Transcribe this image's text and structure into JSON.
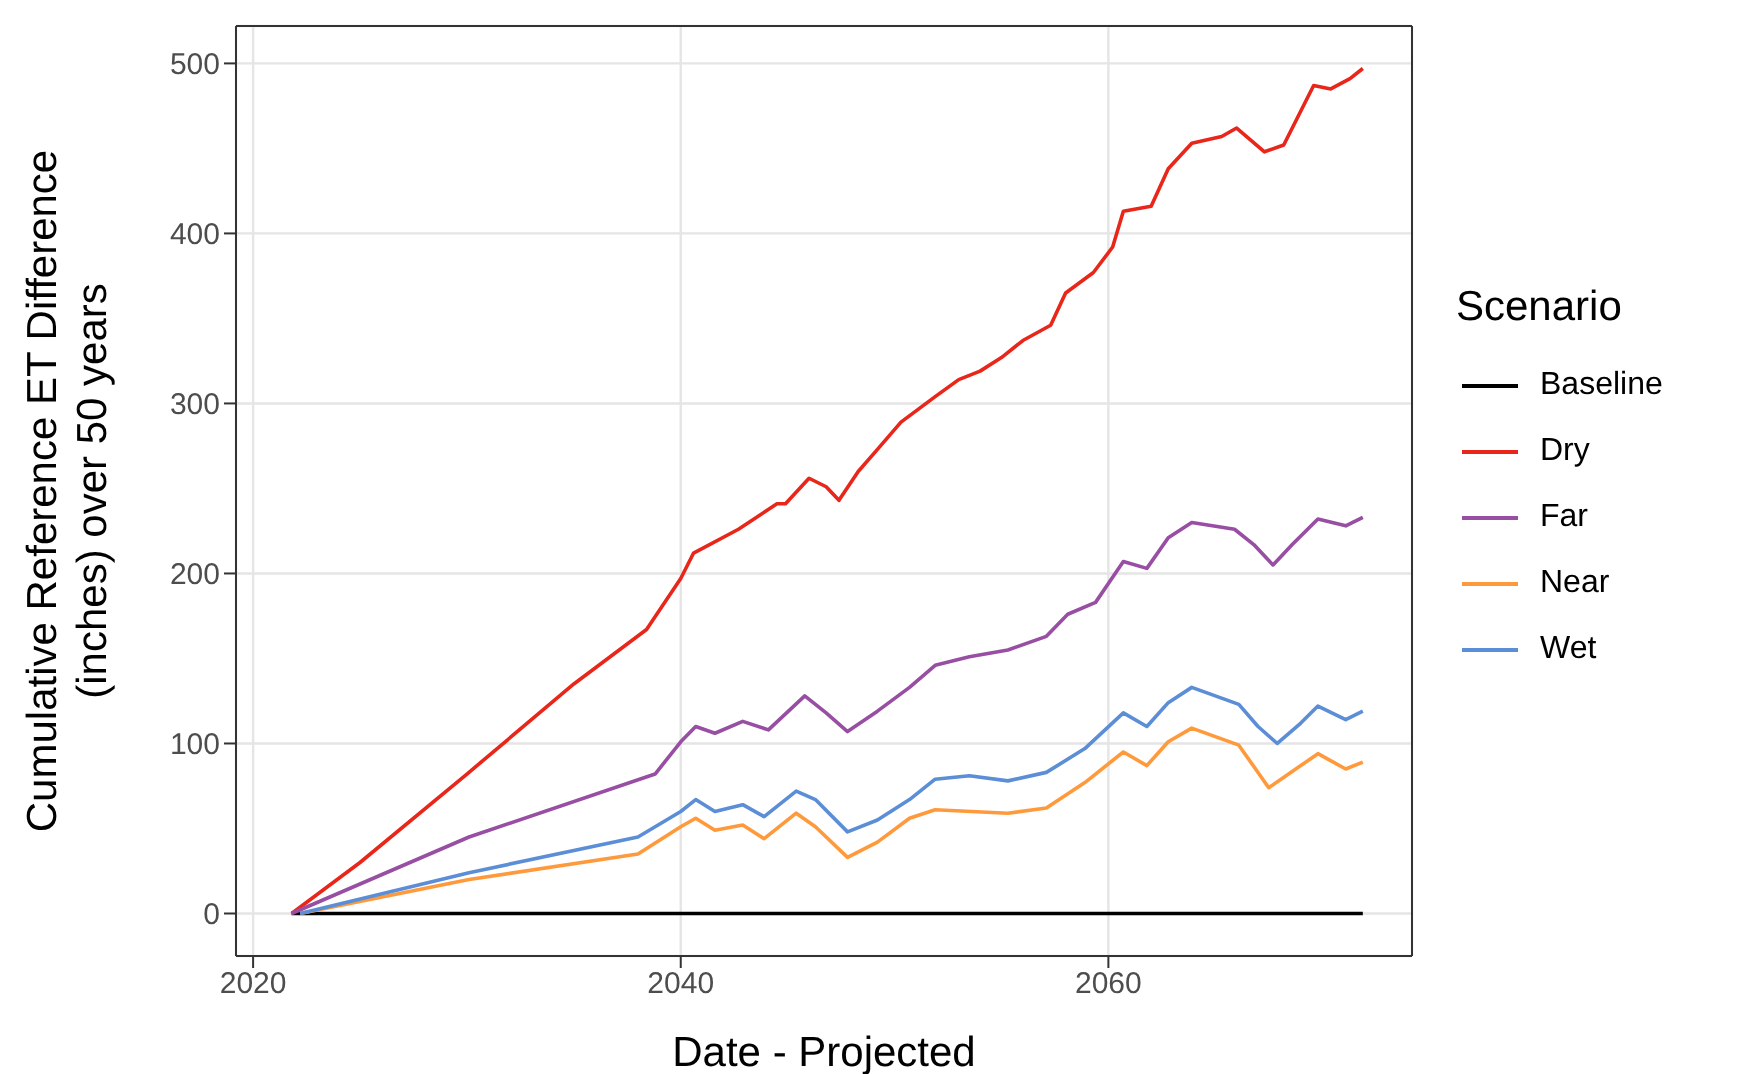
{
  "chart_data": {
    "type": "line",
    "xlabel": "Date - Projected",
    "ylabel": "Cumulative Reference ET Difference\n(inches) over 50 years",
    "legend_title": "Scenario",
    "legend": "right",
    "grid": true,
    "xlim": [
      2019.2,
      2074.2
    ],
    "xticks": [
      2020,
      2040,
      2060
    ],
    "ylim": [
      -25,
      522
    ],
    "yticks": [
      0,
      100,
      200,
      300,
      400,
      500
    ],
    "series": [
      {
        "name": "Baseline",
        "color": "#000000",
        "x": [
          2021.8,
          2071.9
        ],
        "values": [
          0,
          0
        ]
      },
      {
        "name": "Dry",
        "color": "#e8261a",
        "x": [
          2021.8,
          2025,
          2030,
          2035,
          2038.4,
          2040,
          2040.6,
          2042.7,
          2044.5,
          2044.9,
          2046,
          2046.8,
          2047.4,
          2048.3,
          2049.2,
          2050.3,
          2051.9,
          2053,
          2054,
          2055,
          2056,
          2057.3,
          2058,
          2059.3,
          2060.2,
          2060.7,
          2062,
          2062.8,
          2063.9,
          2065.3,
          2066,
          2067.3,
          2068.2,
          2069.6,
          2070.4,
          2071.3,
          2071.9
        ],
        "values": [
          0,
          30,
          82,
          135,
          167,
          197,
          212,
          226,
          241,
          241,
          256,
          251,
          243,
          260,
          273,
          289,
          304,
          314,
          319,
          327,
          337,
          346,
          365,
          377,
          392,
          413,
          416,
          438,
          453,
          457,
          462,
          448,
          452,
          487,
          485,
          491,
          497
        ]
      },
      {
        "name": "Far",
        "color": "#984ea3",
        "x": [
          2021.8,
          2030.1,
          2038.8,
          2040,
          2040.7,
          2041.6,
          2042.9,
          2044.1,
          2045.8,
          2046.8,
          2047.8,
          2049.2,
          2050.7,
          2051.9,
          2053.5,
          2055.3,
          2057.1,
          2058.1,
          2059.4,
          2060.7,
          2061.8,
          2062.8,
          2063.9,
          2065.9,
          2066.8,
          2067.7,
          2068.6,
          2069.8,
          2071.1,
          2071.9
        ],
        "values": [
          0,
          45,
          82,
          101,
          110,
          106,
          113,
          108,
          128,
          118,
          107,
          119,
          133,
          146,
          151,
          155,
          163,
          176,
          183,
          207,
          203,
          221,
          230,
          226,
          217,
          205,
          217,
          232,
          228,
          233
        ]
      },
      {
        "name": "Near",
        "color": "#ff9a3c",
        "x": [
          2022.2,
          2030.1,
          2038,
          2040,
          2040.7,
          2041.6,
          2042.9,
          2043.9,
          2045.4,
          2046.3,
          2047.8,
          2049.2,
          2050.7,
          2051.9,
          2055.3,
          2057.1,
          2058.9,
          2060.7,
          2061.8,
          2062.8,
          2063.9,
          2066.1,
          2067.5,
          2069,
          2069.8,
          2071.1,
          2071.9
        ],
        "values": [
          0,
          20,
          35,
          51,
          56,
          49,
          52,
          44,
          59,
          51,
          33,
          42,
          56,
          61,
          59,
          62,
          77,
          95,
          87,
          101,
          109,
          99,
          74,
          87,
          94,
          85,
          89
        ]
      },
      {
        "name": "Wet",
        "color": "#5b8ed6",
        "x": [
          2022.2,
          2030.1,
          2038,
          2040,
          2040.7,
          2041.6,
          2042.9,
          2043.9,
          2045.4,
          2046.3,
          2047.8,
          2049.2,
          2050.7,
          2051.9,
          2053.5,
          2055.3,
          2057.1,
          2058.9,
          2060.7,
          2061.8,
          2062.8,
          2063.9,
          2066.1,
          2067,
          2067.9,
          2069,
          2069.8,
          2071.1,
          2071.9
        ],
        "values": [
          0,
          24,
          45,
          60,
          67,
          60,
          64,
          57,
          72,
          67,
          48,
          55,
          67,
          79,
          81,
          78,
          83,
          97,
          118,
          110,
          124,
          133,
          123,
          110,
          100,
          112,
          122,
          114,
          119
        ]
      }
    ]
  }
}
